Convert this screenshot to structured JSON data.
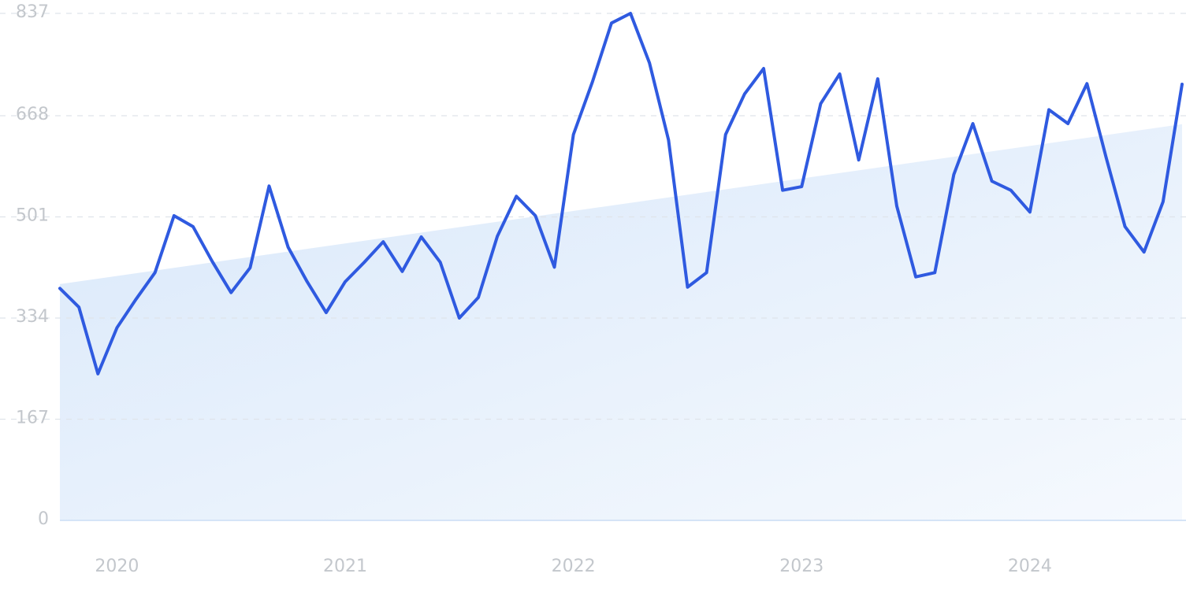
{
  "chart_data": {
    "type": "line",
    "categories": [
      null,
      null,
      null,
      "2020",
      null,
      null,
      null,
      null,
      null,
      null,
      null,
      null,
      null,
      null,
      null,
      "2021",
      null,
      null,
      null,
      null,
      null,
      null,
      null,
      null,
      null,
      null,
      null,
      "2022",
      null,
      null,
      null,
      null,
      null,
      null,
      null,
      null,
      null,
      null,
      null,
      "2023",
      null,
      null,
      null,
      null,
      null,
      null,
      null,
      null,
      null,
      null,
      null,
      "2024",
      null,
      null,
      null,
      null,
      null,
      null,
      null,
      null
    ],
    "series": [
      {
        "color": "#2f5ae0",
        "values": [
          383,
          352,
          242,
          318,
          365,
          409,
          503,
          485,
          428,
          376,
          417,
          552,
          451,
          394,
          343,
          394,
          426,
          460,
          411,
          468,
          426,
          334,
          368,
          469,
          535,
          503,
          418,
          637,
          724,
          821,
          837,
          755,
          628,
          385,
          409,
          637,
          704,
          746,
          545,
          551,
          688,
          737,
          595,
          729,
          519,
          402,
          409,
          571,
          655,
          560,
          545,
          509,
          678,
          655,
          721,
          600,
          485,
          443,
          526,
          720
        ]
      }
    ],
    "trend": [
      390,
      654
    ],
    "trend_color": "#d9e8fa",
    "ylim": [
      0,
      837
    ],
    "yticks": [
      0,
      167,
      334,
      501,
      668,
      837
    ],
    "grid": true
  }
}
